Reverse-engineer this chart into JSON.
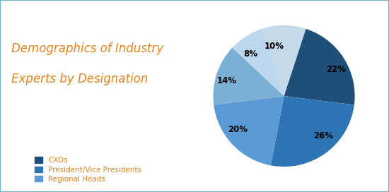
{
  "slices": [
    22,
    26,
    20,
    14,
    8,
    10
  ],
  "labels": [
    "22%",
    "26%",
    "20%",
    "14%",
    "8%",
    "10%"
  ],
  "colors": [
    "#1F4E79",
    "#2E75B6",
    "#5B9BD5",
    "#7BAFD4",
    "#BDD7EE",
    "#C5D9E8"
  ],
  "startangle": 72,
  "counterclock": false,
  "title_line1": "Demographics of Industry",
  "title_line2": "Experts by Designation",
  "title_color": "#E8821A",
  "title_fontsize": 12,
  "legend_labels": [
    "CXOs",
    "President/Vice Presidents",
    "Regional Heads"
  ],
  "legend_colors": [
    "#1F4E79",
    "#2E75B6",
    "#5B9BD5"
  ],
  "legend_text_color": "#E8821A",
  "background_color": "#FFFFFF",
  "border_color": "#70B0D0"
}
